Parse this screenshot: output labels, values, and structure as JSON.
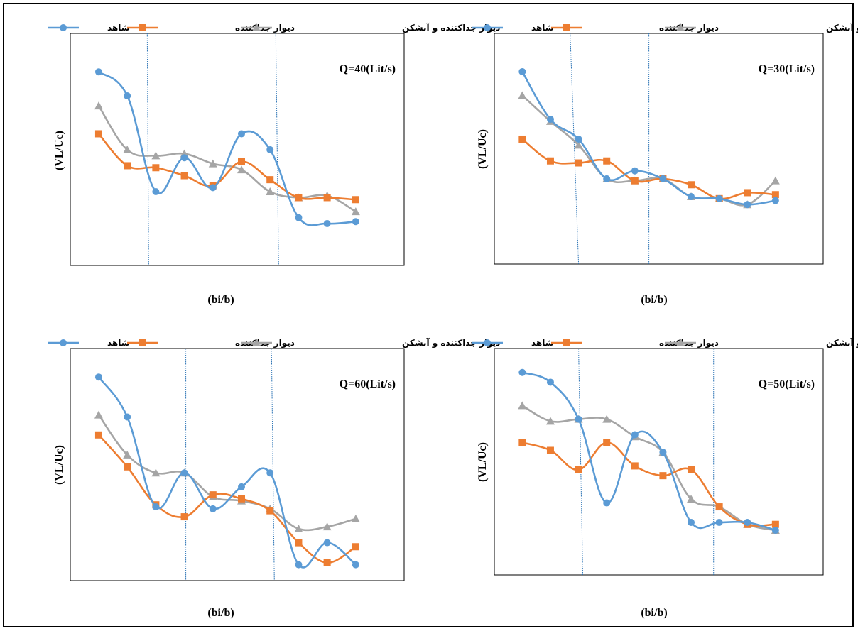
{
  "colors": {
    "shahed": "#5B9BD5",
    "divider": "#ED7D31",
    "divider_breaker": "#A5A5A5",
    "guide": "#2E75B6"
  },
  "legend": {
    "shahed": "شاهد",
    "divider": "دیوار جداکننده",
    "divider_breaker": "دیوار جداکننده و آبشکن"
  },
  "chart_data": [
    {
      "type": "line",
      "title": "Q=40(Lit/s)",
      "xlabel": "(bi/b)",
      "ylabel": "(VL/Uc)",
      "x": [
        1,
        2,
        3,
        4,
        5,
        6,
        7,
        8,
        9,
        10
      ],
      "ylim": [
        0,
        100
      ],
      "guides": [
        [
          2.7,
          2.75
        ],
        [
          7.2,
          7.3
        ]
      ],
      "series": [
        {
          "name": "شاهد",
          "key": "shahed",
          "marker": "circle",
          "values": [
            90,
            78,
            30,
            47,
            32,
            59,
            51,
            17,
            14,
            15
          ]
        },
        {
          "name": "دیوار جداکننده",
          "key": "divider",
          "marker": "square",
          "values": [
            59,
            43,
            42,
            38,
            33,
            45,
            36,
            27,
            27,
            26
          ]
        },
        {
          "name": "دیوار جداکننده و آبشکن",
          "key": "divider_breaker",
          "marker": "triangle",
          "values": [
            73,
            51,
            48,
            49,
            44,
            41,
            30,
            27,
            28,
            20
          ]
        }
      ]
    },
    {
      "type": "line",
      "title": "Q=30(Lit/s)",
      "xlabel": "(bi/b)",
      "ylabel": "(VL/Uc)",
      "x": [
        1,
        2,
        3,
        4,
        5,
        6,
        7,
        8,
        9,
        10
      ],
      "ylim": [
        0,
        100
      ],
      "guides": [
        [
          2.7,
          3.0
        ],
        [
          5.5,
          5.5
        ]
      ],
      "series": [
        {
          "name": "شاهد",
          "key": "shahed",
          "marker": "circle",
          "values": [
            90,
            66,
            56,
            36,
            40,
            36,
            27,
            26,
            23,
            25
          ]
        },
        {
          "name": "دیوار جداکننده",
          "key": "divider",
          "marker": "square",
          "values": [
            56,
            45,
            44,
            45,
            35,
            36,
            33,
            26,
            29,
            28
          ]
        },
        {
          "name": "دیوار جداکننده و آبشکن",
          "key": "divider_breaker",
          "marker": "triangle",
          "values": [
            78,
            65,
            53,
            36,
            35,
            36,
            27,
            26,
            23,
            35
          ]
        }
      ]
    },
    {
      "type": "line",
      "title": "Q=60(Lit/s)",
      "xlabel": "(bi/b)",
      "ylabel": "(VL/Uc)",
      "x": [
        1,
        2,
        3,
        4,
        5,
        6,
        7,
        8,
        9,
        10
      ],
      "ylim": [
        0,
        100
      ],
      "guides": [
        [
          4.05,
          4.05
        ],
        [
          7.05,
          7.15
        ]
      ],
      "series": [
        {
          "name": "شاهد",
          "key": "shahed",
          "marker": "circle",
          "values": [
            95,
            75,
            30,
            47,
            29,
            40,
            47,
            1,
            12,
            1
          ]
        },
        {
          "name": "دیوار جداکننده",
          "key": "divider",
          "marker": "square",
          "values": [
            66,
            50,
            31,
            25,
            36,
            34,
            28,
            12,
            2,
            10
          ]
        },
        {
          "name": "دیوار جداکننده و آبشکن",
          "key": "divider_breaker",
          "marker": "triangle",
          "values": [
            76,
            56,
            47,
            47,
            35,
            33,
            29,
            19,
            20,
            24
          ]
        }
      ]
    },
    {
      "type": "line",
      "title": "Q=50(Lit/s)",
      "xlabel": "(bi/b)",
      "ylabel": "(VL/Uc)",
      "x": [
        1,
        2,
        3,
        4,
        5,
        6,
        7,
        8,
        9,
        10
      ],
      "ylim": [
        0,
        100
      ],
      "guides": [
        [
          3.0,
          3.15
        ],
        [
          7.8,
          7.8
        ]
      ],
      "series": [
        {
          "name": "شاهد",
          "key": "shahed",
          "marker": "circle",
          "values": [
            97,
            92,
            73,
            30,
            65,
            56,
            20,
            20,
            20,
            16
          ]
        },
        {
          "name": "دیوار جداکننده",
          "key": "divider",
          "marker": "square",
          "values": [
            61,
            57,
            47,
            61,
            49,
            44,
            47,
            28,
            19,
            19
          ]
        },
        {
          "name": "دیوار جداکننده و آبشکن",
          "key": "divider_breaker",
          "marker": "triangle",
          "values": [
            80,
            72,
            73,
            73,
            64,
            56,
            32,
            28,
            19,
            16
          ]
        }
      ]
    }
  ]
}
